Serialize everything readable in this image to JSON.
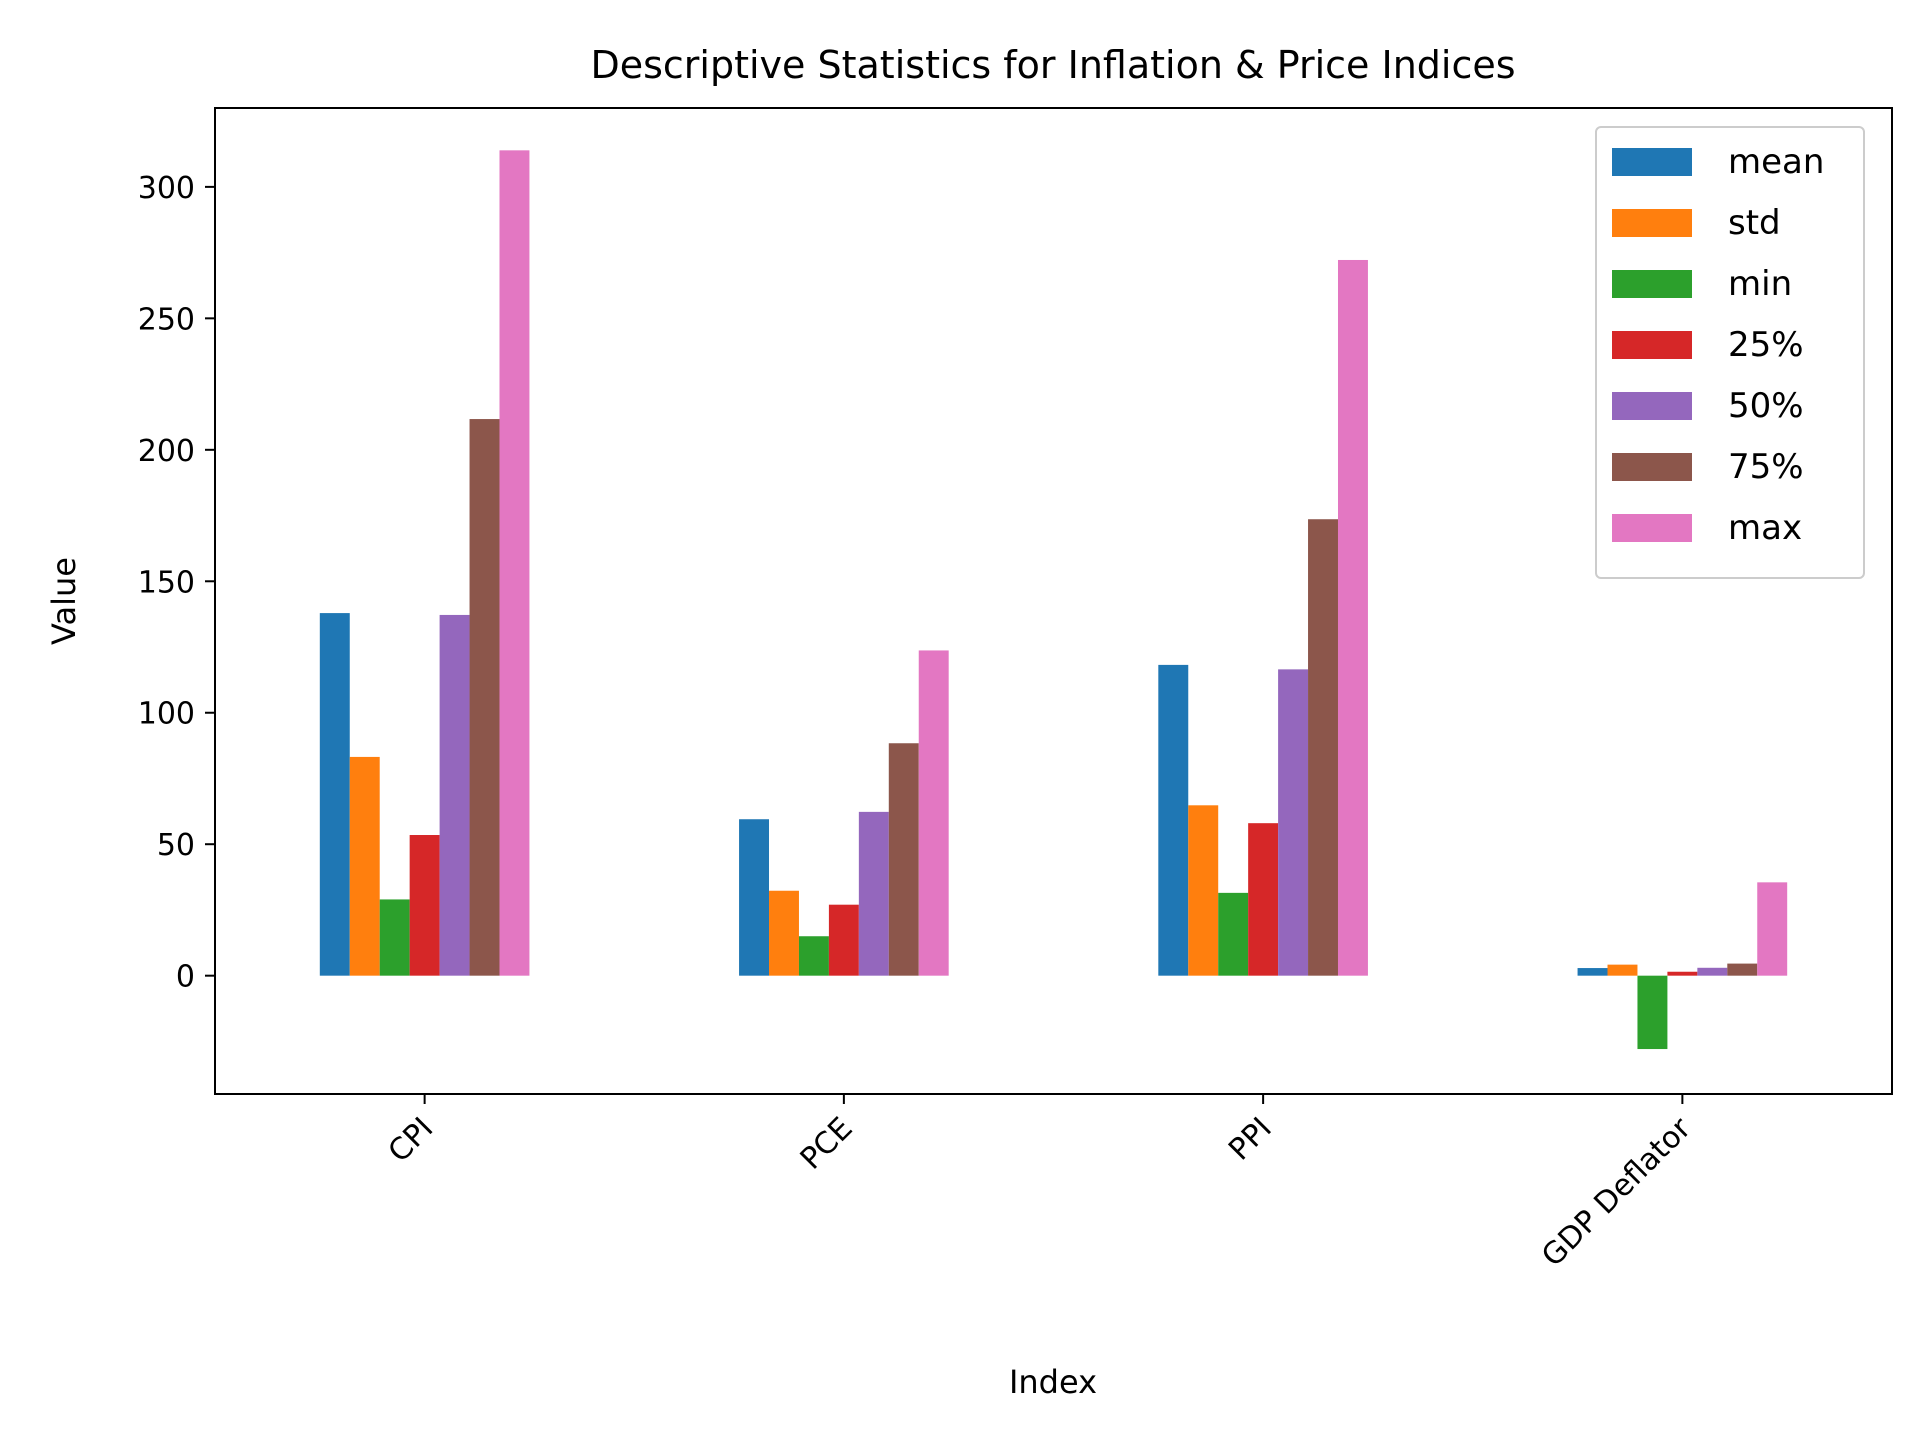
{
  "chart_data": {
    "type": "bar",
    "title": "Descriptive Statistics for Inflation & Price Indices",
    "xlabel": "Index",
    "ylabel": "Value",
    "ylim": [
      -45,
      330
    ],
    "yticks": [
      0,
      50,
      100,
      150,
      200,
      250,
      300
    ],
    "grid": false,
    "legend_position": "top-right",
    "categories": [
      "CPI",
      "PCE",
      "PPI",
      "GDP Deflator"
    ],
    "series": [
      {
        "name": "mean",
        "color": "#1f77b4",
        "values": [
          137.9,
          59.5,
          118.2,
          2.9
        ]
      },
      {
        "name": "std",
        "color": "#ff7f0e",
        "values": [
          83.2,
          32.3,
          64.8,
          4.2
        ]
      },
      {
        "name": "min",
        "color": "#2ca02c",
        "values": [
          29.0,
          15.0,
          31.5,
          -27.9
        ]
      },
      {
        "name": "25%",
        "color": "#d62728",
        "values": [
          53.5,
          27.0,
          58.0,
          1.5
        ]
      },
      {
        "name": "50%",
        "color": "#9467bd",
        "values": [
          137.2,
          62.3,
          116.5,
          3.0
        ]
      },
      {
        "name": "75%",
        "color": "#8c564b",
        "values": [
          211.7,
          88.4,
          173.6,
          4.6
        ]
      },
      {
        "name": "max",
        "color": "#e377c2",
        "values": [
          313.9,
          123.7,
          272.2,
          35.5
        ]
      }
    ]
  }
}
